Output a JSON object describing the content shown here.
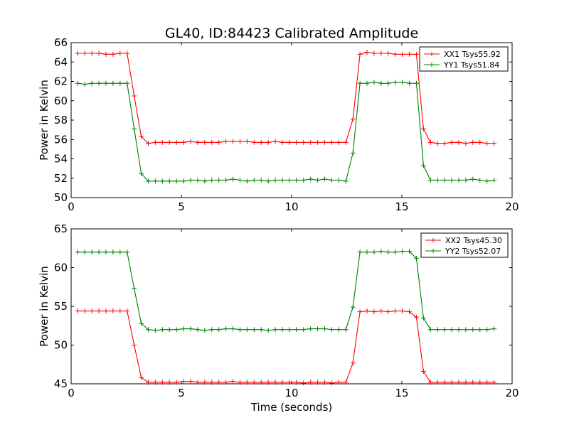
{
  "figure": {
    "title": "GL40, ID:84423 Calibrated Amplitude",
    "xlabel": "Time (seconds)"
  },
  "colors": {
    "xx": "#ff0000",
    "yy": "#008000",
    "axes": "#000000",
    "background": "#ffffff"
  },
  "chart_data": [
    {
      "type": "line",
      "title": "GL40, ID:84423 Calibrated Amplitude",
      "xlabel": "",
      "ylabel": "Power in Kelvin",
      "xlim": [
        0,
        20
      ],
      "ylim": [
        50,
        66
      ],
      "xticks": [
        "0",
        "5",
        "10",
        "15",
        "20"
      ],
      "yticks": [
        "50",
        "52",
        "54",
        "56",
        "58",
        "60",
        "62",
        "64",
        "66"
      ],
      "grid": false,
      "legend": "top-right",
      "marker": "+",
      "x": [
        0.3,
        0.62,
        0.94,
        1.26,
        1.58,
        1.9,
        2.22,
        2.54,
        2.86,
        3.18,
        3.5,
        3.82,
        4.14,
        4.46,
        4.78,
        5.1,
        5.42,
        5.74,
        6.06,
        6.38,
        6.7,
        7.02,
        7.34,
        7.66,
        7.98,
        8.3,
        8.62,
        8.94,
        9.26,
        9.58,
        9.9,
        10.22,
        10.54,
        10.86,
        11.18,
        11.5,
        11.82,
        12.14,
        12.46,
        12.78,
        13.1,
        13.42,
        13.74,
        14.06,
        14.38,
        14.7,
        15.02,
        15.34,
        15.66,
        15.98,
        16.3,
        16.62,
        16.94,
        17.26,
        17.58,
        17.9,
        18.22,
        18.54,
        18.86,
        19.18
      ],
      "series": [
        {
          "name": "XX1 Tsys55.92",
          "color": "#ff0000",
          "values": [
            64.9,
            64.9,
            64.9,
            64.9,
            64.8,
            64.8,
            64.9,
            64.9,
            60.5,
            56.3,
            55.6,
            55.7,
            55.7,
            55.7,
            55.7,
            55.7,
            55.8,
            55.7,
            55.7,
            55.7,
            55.7,
            55.8,
            55.8,
            55.8,
            55.8,
            55.7,
            55.7,
            55.7,
            55.8,
            55.7,
            55.7,
            55.7,
            55.7,
            55.7,
            55.7,
            55.7,
            55.7,
            55.7,
            55.7,
            58.1,
            64.8,
            65.0,
            64.9,
            64.9,
            64.9,
            64.8,
            64.8,
            64.8,
            64.8,
            57.1,
            55.7,
            55.6,
            55.6,
            55.7,
            55.7,
            55.6,
            55.7,
            55.7,
            55.6,
            55.6
          ]
        },
        {
          "name": "YY1 Tsys51.84",
          "color": "#008000",
          "values": [
            61.8,
            61.7,
            61.8,
            61.8,
            61.8,
            61.8,
            61.8,
            61.8,
            57.1,
            52.5,
            51.7,
            51.7,
            51.7,
            51.7,
            51.7,
            51.7,
            51.8,
            51.8,
            51.7,
            51.8,
            51.8,
            51.8,
            51.9,
            51.8,
            51.7,
            51.8,
            51.8,
            51.7,
            51.8,
            51.8,
            51.8,
            51.8,
            51.8,
            51.9,
            51.8,
            51.9,
            51.8,
            51.8,
            51.7,
            54.6,
            61.8,
            61.8,
            61.9,
            61.8,
            61.8,
            61.9,
            61.9,
            61.8,
            61.8,
            53.3,
            51.8,
            51.8,
            51.8,
            51.8,
            51.8,
            51.8,
            51.9,
            51.8,
            51.7,
            51.8
          ]
        }
      ]
    },
    {
      "type": "line",
      "title": "",
      "xlabel": "Time (seconds)",
      "ylabel": "Power in Kelvin",
      "xlim": [
        0,
        20
      ],
      "ylim": [
        45,
        65
      ],
      "xticks": [
        "0",
        "5",
        "10",
        "15",
        "20"
      ],
      "yticks": [
        "45",
        "50",
        "55",
        "60",
        "65"
      ],
      "grid": false,
      "legend": "top-right",
      "marker": "+",
      "x": [
        0.3,
        0.62,
        0.94,
        1.26,
        1.58,
        1.9,
        2.22,
        2.54,
        2.86,
        3.18,
        3.5,
        3.82,
        4.14,
        4.46,
        4.78,
        5.1,
        5.42,
        5.74,
        6.06,
        6.38,
        6.7,
        7.02,
        7.34,
        7.66,
        7.98,
        8.3,
        8.62,
        8.94,
        9.26,
        9.58,
        9.9,
        10.22,
        10.54,
        10.86,
        11.18,
        11.5,
        11.82,
        12.14,
        12.46,
        12.78,
        13.1,
        13.42,
        13.74,
        14.06,
        14.38,
        14.7,
        15.02,
        15.34,
        15.66,
        15.98,
        16.3,
        16.62,
        16.94,
        17.26,
        17.58,
        17.9,
        18.22,
        18.54,
        18.86,
        19.18
      ],
      "series": [
        {
          "name": "XX2 Tsys45.30",
          "color": "#ff0000",
          "values": [
            54.4,
            54.4,
            54.4,
            54.4,
            54.4,
            54.4,
            54.4,
            54.4,
            50.0,
            45.8,
            45.2,
            45.2,
            45.2,
            45.2,
            45.2,
            45.3,
            45.3,
            45.2,
            45.2,
            45.2,
            45.2,
            45.2,
            45.3,
            45.2,
            45.2,
            45.2,
            45.2,
            45.2,
            45.2,
            45.2,
            45.2,
            45.2,
            45.1,
            45.2,
            45.2,
            45.2,
            45.1,
            45.2,
            45.2,
            47.7,
            54.3,
            54.4,
            54.3,
            54.4,
            54.3,
            54.4,
            54.4,
            54.3,
            53.6,
            46.6,
            45.2,
            45.2,
            45.2,
            45.2,
            45.2,
            45.2,
            45.2,
            45.2,
            45.2,
            45.2
          ]
        },
        {
          "name": "YY2 Tsys52.07",
          "color": "#008000",
          "values": [
            62.0,
            62.0,
            62.0,
            62.0,
            62.0,
            62.0,
            62.0,
            62.0,
            57.3,
            52.8,
            52.0,
            51.9,
            52.0,
            52.0,
            52.0,
            52.1,
            52.1,
            52.0,
            51.9,
            52.0,
            52.0,
            52.1,
            52.1,
            52.0,
            52.0,
            52.0,
            52.0,
            51.9,
            52.0,
            52.0,
            52.0,
            52.0,
            52.0,
            52.1,
            52.1,
            52.1,
            52.0,
            52.0,
            52.0,
            54.9,
            62.0,
            62.0,
            62.0,
            62.1,
            62.0,
            62.0,
            62.1,
            62.1,
            61.2,
            53.5,
            52.0,
            52.0,
            52.0,
            52.0,
            52.0,
            52.0,
            52.0,
            52.0,
            52.0,
            52.1
          ]
        }
      ]
    }
  ]
}
